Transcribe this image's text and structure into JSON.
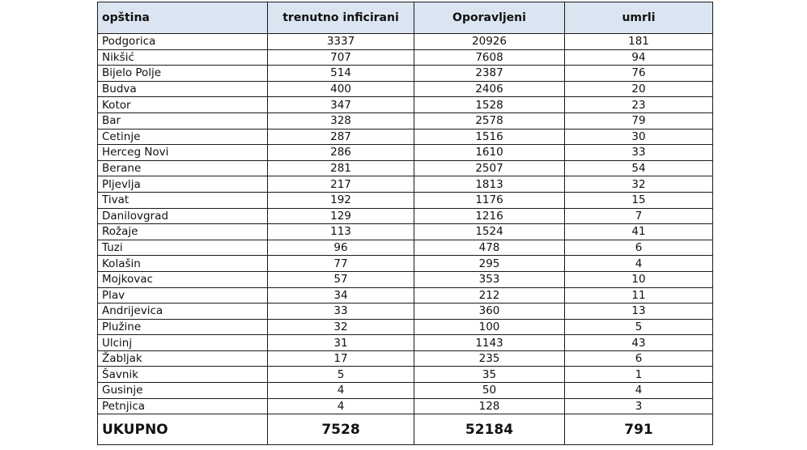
{
  "table": {
    "headers": [
      "opština",
      "trenutno inficirani",
      "Oporavljeni",
      "umrli"
    ],
    "rows": [
      [
        "Podgorica",
        "3337",
        "20926",
        "181"
      ],
      [
        "Nikšić",
        "707",
        "7608",
        "94"
      ],
      [
        "Bijelo Polje",
        "514",
        "2387",
        "76"
      ],
      [
        "Budva",
        "400",
        "2406",
        "20"
      ],
      [
        "Kotor",
        "347",
        "1528",
        "23"
      ],
      [
        "Bar",
        "328",
        "2578",
        "79"
      ],
      [
        "Cetinje",
        "287",
        "1516",
        "30"
      ],
      [
        "Herceg Novi",
        "286",
        "1610",
        "33"
      ],
      [
        "Berane",
        "281",
        "2507",
        "54"
      ],
      [
        "Pljevlja",
        "217",
        "1813",
        "32"
      ],
      [
        "Tivat",
        "192",
        "1176",
        "15"
      ],
      [
        "Danilovgrad",
        "129",
        "1216",
        "7"
      ],
      [
        "Rožaje",
        "113",
        "1524",
        "41"
      ],
      [
        "Tuzi",
        "96",
        "478",
        "6"
      ],
      [
        "Kolašin",
        "77",
        "295",
        "4"
      ],
      [
        "Mojkovac",
        "57",
        "353",
        "10"
      ],
      [
        "Plav",
        "34",
        "212",
        "11"
      ],
      [
        "Andrijevica",
        "33",
        "360",
        "13"
      ],
      [
        "Plužine",
        "32",
        "100",
        "5"
      ],
      [
        "Ulcinj",
        "31",
        "1143",
        "43"
      ],
      [
        "Žabljak",
        "17",
        "235",
        "6"
      ],
      [
        "Šavnik",
        "5",
        "35",
        "1"
      ],
      [
        "Gusinje",
        "4",
        "50",
        "4"
      ],
      [
        "Petnjica",
        "4",
        "128",
        "3"
      ]
    ],
    "total": [
      "UKUPNO",
      "7528",
      "52184",
      "791"
    ]
  },
  "colors": {
    "header_background": "#dbe5f1",
    "border": "#1a1a1a",
    "text": "#111111"
  }
}
